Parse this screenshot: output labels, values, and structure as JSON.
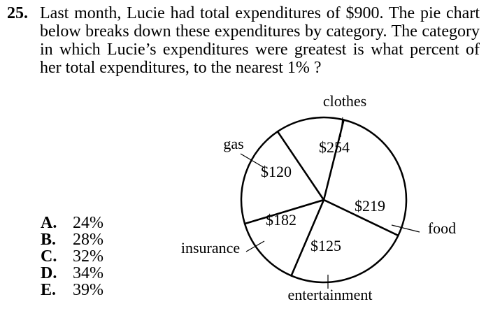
{
  "question": {
    "number": "25.",
    "text": "Last month, Lucie had total expenditures of $900. The pie chart below breaks down these expenditures by category. The category in which Lucie’s expenditures were greatest is what percent of her total expenditures, to the nearest 1% ?"
  },
  "choices": [
    {
      "letter": "A.",
      "text": "24%"
    },
    {
      "letter": "B.",
      "text": "28%"
    },
    {
      "letter": "C.",
      "text": "32%"
    },
    {
      "letter": "D.",
      "text": "34%"
    },
    {
      "letter": "E.",
      "text": "39%"
    }
  ],
  "chart_data": {
    "type": "pie",
    "slices": [
      {
        "label": "clothes",
        "value_label": "$254",
        "value": 254
      },
      {
        "label": "food",
        "value_label": "$219",
        "value": 219
      },
      {
        "label": "entertainment",
        "value_label": "$125",
        "value": 125
      },
      {
        "label": "insurance",
        "value_label": "$182",
        "value": 182
      },
      {
        "label": "gas",
        "value_label": "$120",
        "value": 120
      }
    ],
    "total": 900,
    "colors": {
      "fill": "#ffffff",
      "stroke": "#000000"
    }
  }
}
